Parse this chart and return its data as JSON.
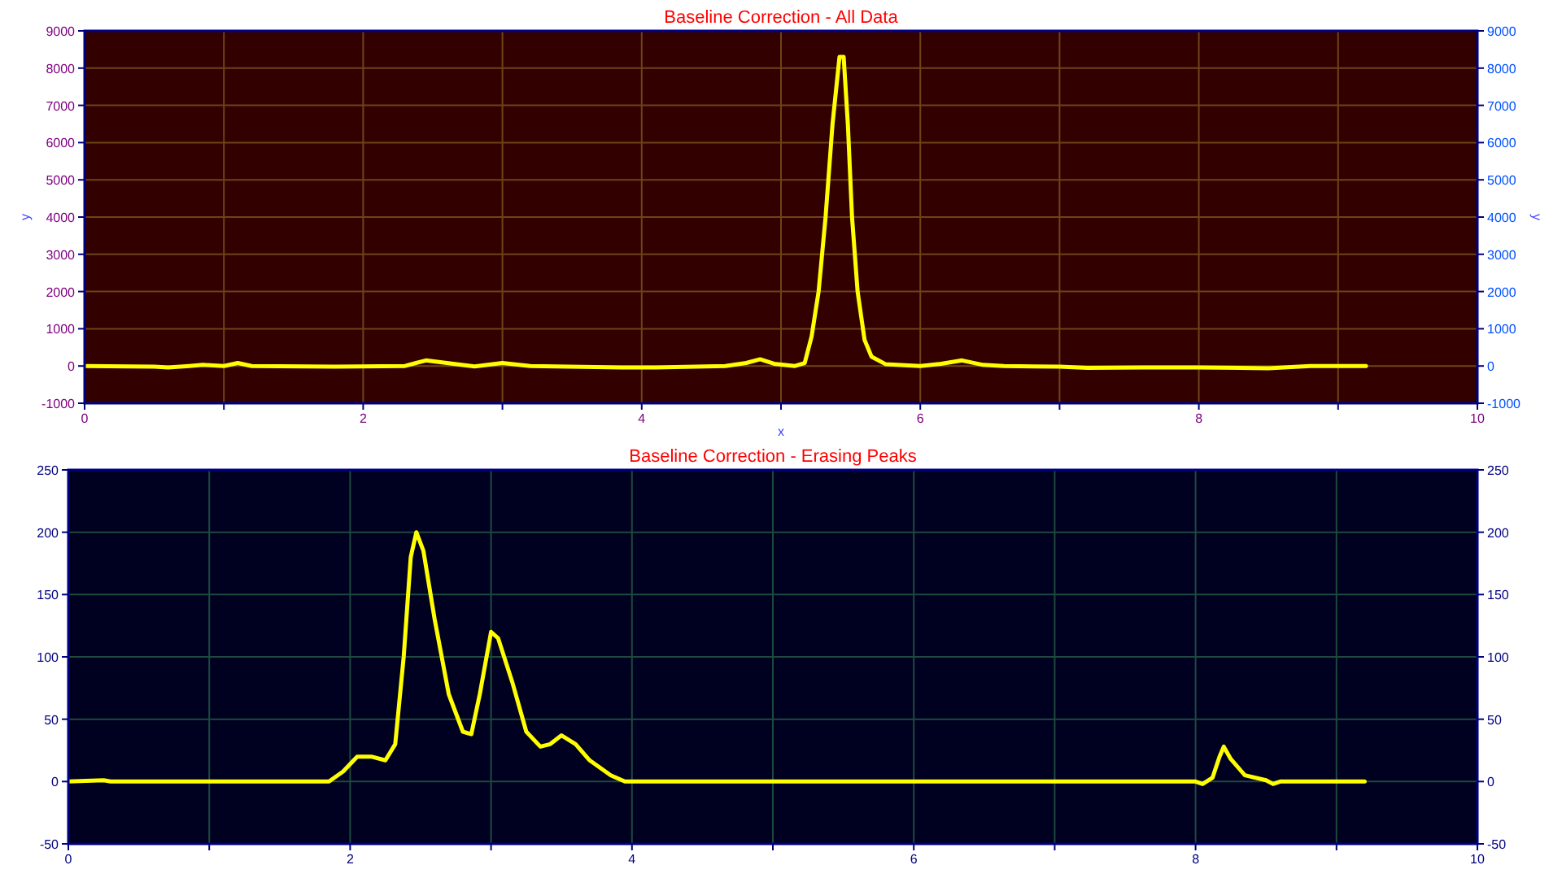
{
  "chart_data": [
    {
      "type": "line",
      "title": "Baseline Correction - All Data",
      "xlabel": "x",
      "ylabel": "y",
      "y2label": "y",
      "xlim": [
        0,
        10
      ],
      "xticks": [
        0,
        {
          "value": 1,
          "label": null
        },
        2,
        {
          "value": 3,
          "label": null
        },
        4,
        {
          "value": 5,
          "label": null
        },
        6,
        {
          "value": 7,
          "label": null
        },
        8,
        {
          "value": 9,
          "label": null
        },
        10
      ],
      "ylim": [
        -1000,
        9000
      ],
      "yticks": [
        -1000,
        0,
        1000,
        2000,
        3000,
        4000,
        5000,
        6000,
        7000,
        8000,
        9000
      ],
      "y2lim": [
        -1000,
        9000
      ],
      "y2ticks": [
        -1000,
        0,
        1000,
        2000,
        3000,
        4000,
        5000,
        6000,
        7000,
        8000,
        9000
      ],
      "grid": true,
      "marker": "none",
      "line_style": "solid",
      "series": [
        {
          "color": "#ffff00",
          "x": [
            0,
            0.5,
            0.6,
            0.75,
            0.85,
            1.0,
            1.1,
            1.2,
            1.8,
            2.3,
            2.45,
            2.6,
            2.8,
            3.0,
            3.2,
            3.9,
            4.1,
            4.6,
            4.75,
            4.85,
            4.95,
            5.1,
            5.17,
            5.22,
            5.27,
            5.32,
            5.37,
            5.42,
            5.45,
            5.48,
            5.51,
            5.55,
            5.6,
            5.65,
            5.75,
            6.0,
            6.15,
            6.3,
            6.45,
            6.6,
            7.0,
            7.2,
            7.6,
            8.0,
            8.5,
            8.8,
            9.2
          ],
          "values": [
            0,
            -20,
            -40,
            0,
            30,
            0,
            80,
            0,
            -20,
            0,
            150,
            80,
            -10,
            80,
            0,
            -40,
            -40,
            0,
            80,
            180,
            60,
            0,
            80,
            800,
            2000,
            4000,
            6500,
            8300,
            8300,
            6500,
            4000,
            2000,
            700,
            250,
            50,
            0,
            60,
            150,
            30,
            0,
            -20,
            -50,
            -40,
            -40,
            -60,
            0,
            0
          ]
        }
      ]
    },
    {
      "type": "line",
      "title": "Baseline Correction - Erasing Peaks",
      "xlim": [
        0,
        10
      ],
      "xticks": [
        0,
        {
          "value": 1,
          "label": null
        },
        2,
        {
          "value": 3,
          "label": null
        },
        4,
        {
          "value": 5,
          "label": null
        },
        6,
        {
          "value": 7,
          "label": null
        },
        8,
        {
          "value": 9,
          "label": null
        },
        10
      ],
      "ylim": [
        -50,
        250
      ],
      "yticks": [
        -50,
        0,
        50,
        100,
        150,
        200,
        250
      ],
      "y2lim": [
        -50,
        250
      ],
      "y2ticks": [
        -50,
        0,
        50,
        100,
        150,
        200,
        250
      ],
      "grid": true,
      "marker": "none",
      "line_style": "solid",
      "series": [
        {
          "color": "#ffff00",
          "x": [
            0,
            0.25,
            0.3,
            1.85,
            1.95,
            2.05,
            2.15,
            2.25,
            2.32,
            2.38,
            2.43,
            2.47,
            2.52,
            2.6,
            2.7,
            2.8,
            2.86,
            2.92,
            3.0,
            3.05,
            3.15,
            3.25,
            3.35,
            3.42,
            3.5,
            3.6,
            3.7,
            3.85,
            3.95,
            8.0,
            8.05,
            8.12,
            8.17,
            8.2,
            8.25,
            8.35,
            8.5,
            8.55,
            8.6,
            9.2
          ],
          "values": [
            0,
            1,
            0,
            0,
            8,
            20,
            20,
            17,
            30,
            100,
            180,
            200,
            185,
            130,
            70,
            40,
            38,
            70,
            120,
            115,
            80,
            40,
            28,
            30,
            37,
            30,
            17,
            5,
            0,
            0,
            -2,
            3,
            20,
            28,
            18,
            5,
            1,
            -2,
            0,
            0
          ]
        }
      ]
    }
  ]
}
